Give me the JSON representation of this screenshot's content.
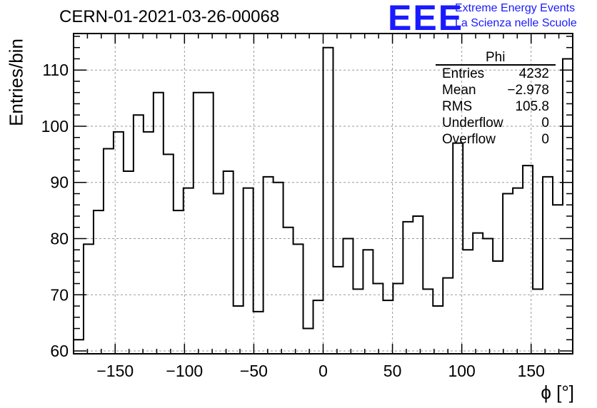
{
  "title": "CERN-01-2021-03-26-00068",
  "logo": {
    "mark": "EEE",
    "line1": "Extreme Energy Events",
    "line2": "La Scienza nelle Scuole"
  },
  "stats": {
    "name": "Phi",
    "rows": [
      {
        "key": "Entries",
        "value": "4232"
      },
      {
        "key": "Mean",
        "value": "−2.978"
      },
      {
        "key": "RMS",
        "value": "105.8"
      },
      {
        "key": "Underflow",
        "value": "0"
      },
      {
        "key": "Overflow",
        "value": "0"
      }
    ]
  },
  "chart_data": {
    "type": "bar",
    "histogram": true,
    "title": "CERN-01-2021-03-26-00068",
    "xlabel": "ϕ [°]",
    "ylabel": "Entries/bin",
    "xlim": [
      -180,
      180
    ],
    "ylim": [
      59.5,
      116.5
    ],
    "bin_width": 7.2,
    "x_ticks": [
      -150,
      -100,
      -50,
      0,
      50,
      100,
      150
    ],
    "x_tick_labels": [
      "−150",
      "−100",
      "−50",
      "0",
      "50",
      "100",
      "150"
    ],
    "y_ticks": [
      60,
      70,
      80,
      90,
      100,
      110
    ],
    "grid": true,
    "values": [
      62,
      79,
      85,
      96,
      99,
      92,
      102,
      99,
      106,
      95,
      85,
      89,
      106,
      106,
      88,
      92,
      68,
      89,
      67,
      91,
      90,
      82,
      79,
      64,
      69,
      114,
      75,
      80,
      71,
      78,
      72,
      69,
      72,
      83,
      84,
      71,
      68,
      73,
      97,
      78,
      81,
      80,
      76,
      88,
      89,
      93,
      71,
      91,
      86,
      112
    ]
  }
}
